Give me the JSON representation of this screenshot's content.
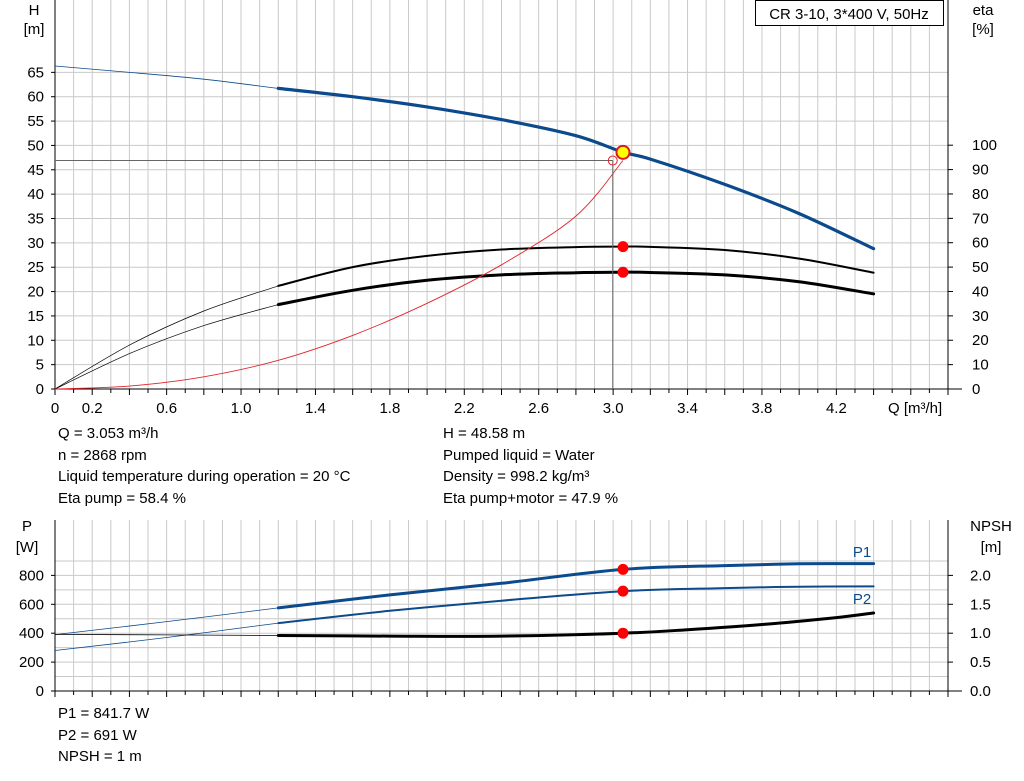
{
  "chart_data": [
    {
      "type": "line",
      "name_box": "CR 3-10, 3*400 V, 50Hz",
      "xlabel": "Q [m³/h]",
      "x_ticks": [
        "0",
        "0.2",
        "0.6",
        "1.0",
        "1.4",
        "1.8",
        "2.2",
        "2.6",
        "3.0",
        "3.4",
        "3.8",
        "4.2"
      ],
      "xlim": [
        0,
        4.8
      ],
      "y_left_label": [
        "H",
        "[m]"
      ],
      "y_left_ticks": [
        "0",
        "5",
        "10",
        "15",
        "20",
        "25",
        "30",
        "35",
        "40",
        "45",
        "50",
        "55",
        "60",
        "65"
      ],
      "ylim_left": [
        0,
        70
      ],
      "y_right_label": [
        "eta",
        "[%]"
      ],
      "y_right_ticks": [
        "0",
        "10",
        "20",
        "30",
        "40",
        "50",
        "60",
        "70",
        "80",
        "90",
        "100"
      ],
      "ylim_right": [
        0,
        100
      ],
      "grid": true,
      "operating_point": {
        "Q": 3.053,
        "H": 48.58
      },
      "series": [
        {
          "axis": "left",
          "color": "#0b4a8c",
          "x": [
            0,
            0.4,
            0.8,
            1.2,
            1.6,
            2.0,
            2.4,
            2.8,
            3.053,
            3.2,
            3.6,
            4.0,
            4.4
          ],
          "y": [
            66.3,
            65.0,
            63.6,
            61.7,
            60.0,
            57.9,
            55.3,
            52.0,
            48.6,
            47.2,
            42.0,
            36.0,
            28.8
          ]
        },
        {
          "axis": "right",
          "color": "#000000",
          "x": [
            0,
            0.4,
            0.8,
            1.2,
            1.6,
            2.0,
            2.4,
            2.8,
            3.053,
            3.2,
            3.6,
            4.0,
            4.4
          ],
          "y": [
            0,
            18,
            32,
            42.3,
            50,
            54.6,
            57.2,
            58.2,
            58.4,
            58.3,
            57.0,
            53.5,
            47.7
          ]
        },
        {
          "axis": "right",
          "color": "#000000",
          "x": [
            0,
            0.4,
            0.8,
            1.2,
            1.6,
            2.0,
            2.4,
            2.8,
            3.053,
            3.2,
            3.6,
            4.0,
            4.4
          ],
          "y": [
            0,
            14.5,
            26,
            34.6,
            40.5,
            44.6,
            46.8,
            47.7,
            47.9,
            47.8,
            46.8,
            44.0,
            39.0
          ]
        },
        {
          "axis": "left",
          "color": "#e0252b",
          "x": [
            0,
            0.4,
            0.8,
            1.2,
            1.6,
            2.0,
            2.4,
            2.8,
            3.053
          ],
          "y": [
            0,
            0.6,
            2.5,
            5.9,
            11,
            17.6,
            25.5,
            35.5,
            46.9
          ]
        }
      ]
    },
    {
      "type": "line",
      "xlim": [
        0,
        4.8
      ],
      "y_left_label": [
        "P",
        "[W]"
      ],
      "y_left_ticks": [
        "0",
        "200",
        "400",
        "600",
        "800"
      ],
      "ylim_left": [
        0,
        1000
      ],
      "y_right_label": [
        "NPSH",
        "[m]"
      ],
      "y_right_ticks": [
        "0.0",
        "0.5",
        "1.0",
        "1.5",
        "2.0"
      ],
      "ylim_right": [
        0,
        2.5
      ],
      "grid": true,
      "series": [
        {
          "name": "P1",
          "axis": "left",
          "color": "#0b4a8c",
          "x": [
            0,
            0.6,
            1.2,
            1.8,
            2.4,
            3.053,
            3.6,
            4.0,
            4.4
          ],
          "y": [
            390,
            480,
            575,
            665,
            745,
            841.7,
            868,
            880,
            882
          ]
        },
        {
          "name": "P2",
          "axis": "left",
          "color": "#0b4a8c",
          "x": [
            0,
            0.6,
            1.2,
            1.8,
            2.4,
            3.053,
            3.6,
            4.0,
            4.4
          ],
          "y": [
            280,
            370,
            470,
            555,
            625,
            691,
            712,
            722,
            724
          ]
        },
        {
          "axis": "right",
          "color": "#000000",
          "x": [
            0,
            0.6,
            1.2,
            1.8,
            2.4,
            3.053,
            3.4,
            3.8,
            4.2,
            4.4
          ],
          "y": [
            0.98,
            0.97,
            0.96,
            0.95,
            0.95,
            1.0,
            1.06,
            1.15,
            1.27,
            1.35
          ]
        }
      ],
      "markers": [
        841.7,
        691,
        400
      ]
    }
  ],
  "info_top_left": [
    "Q = 3.053 m³/h",
    "n = 2868 rpm",
    "Liquid temperature during operation = 20 °C",
    "Eta pump = 58.4 %"
  ],
  "info_top_right": [
    "H = 48.58 m",
    "Pumped liquid = Water",
    "Density = 998.2 kg/m³",
    "Eta pump+motor = 47.9 %"
  ],
  "info_bottom": [
    "P1 = 841.7 W",
    "P2 = 691 W",
    "NPSH = 1 m"
  ],
  "colors": {
    "grid": "#c9c9c9",
    "curve_blue": "#0b4a8c",
    "marker_red": "#ff0000",
    "marker_yellow": "#ffff00"
  }
}
